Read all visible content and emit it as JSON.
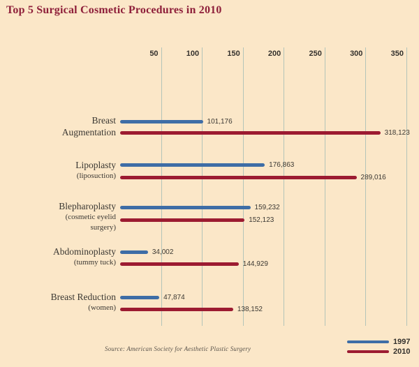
{
  "chart_data": {
    "type": "bar",
    "orientation": "horizontal",
    "title": "Top 5 Surgical Cosmetic Procedures in 2010",
    "x_axis": {
      "min": 0,
      "max": 350,
      "ticks": [
        50,
        100,
        150,
        200,
        250,
        300,
        350
      ],
      "unit": "thousands of procedures",
      "grid": true
    },
    "series": [
      "1997",
      "2010"
    ],
    "rows": [
      {
        "category": "Breast Augmentation",
        "label_main": [
          "Breast",
          "Augmentation"
        ],
        "label_sub": [],
        "values": {
          "1997": 101176,
          "2010": 318123
        },
        "display": {
          "1997": "101,176",
          "2010": "318,123"
        }
      },
      {
        "category": "Lipoplasty",
        "label_main": [
          "Lipoplasty"
        ],
        "label_sub": [
          "(liposuction)"
        ],
        "values": {
          "1997": 176863,
          "2010": 289016
        },
        "display": {
          "1997": "176,863",
          "2010": "289,016"
        }
      },
      {
        "category": "Blepharoplasty",
        "label_main": [
          "Blepharoplasty"
        ],
        "label_sub": [
          "(cosmetic eyelid",
          "surgery)"
        ],
        "values": {
          "1997": 159232,
          "2010": 152123
        },
        "display": {
          "1997": "159,232",
          "2010": "152,123"
        }
      },
      {
        "category": "Abdominoplasty",
        "label_main": [
          "Abdominoplasty"
        ],
        "label_sub": [
          "(tummy tuck)"
        ],
        "values": {
          "1997": 34002,
          "2010": 144929
        },
        "display": {
          "1997": "34,002",
          "2010": "144,929"
        }
      },
      {
        "category": "Breast Reduction",
        "label_main": [
          "Breast Reduction"
        ],
        "label_sub": [
          "(women)"
        ],
        "values": {
          "1997": 47874,
          "2010": 138152
        },
        "display": {
          "1997": "47,874",
          "2010": "138,152"
        }
      }
    ],
    "legend": [
      {
        "label": "1997",
        "color": "#3e6da6"
      },
      {
        "label": "2010",
        "color": "#9c1b31"
      }
    ],
    "legend_position": "bottom-right",
    "source": "Source: American Society for Aesthetic Plastic Surgery",
    "colors": {
      "background": "#fbe7c8",
      "title": "#8e1f3a",
      "gridline": "#b3c4b9",
      "text": "#3b3833",
      "bar_1997": "#3e6da6",
      "bar_2010": "#9c1b31"
    }
  }
}
